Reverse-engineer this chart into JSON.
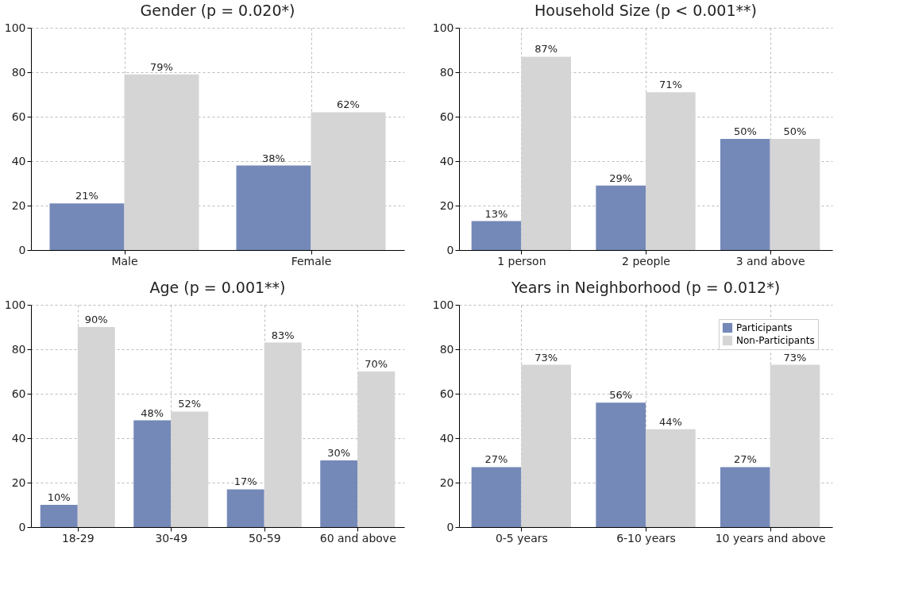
{
  "chart_data": [
    {
      "type": "bar",
      "title": "Gender (p = 0.020*)",
      "categories": [
        "Male",
        "Female"
      ],
      "ylim": [
        0,
        100
      ],
      "yticks": [
        0,
        20,
        40,
        60,
        80,
        100
      ],
      "grid": true,
      "legend": false,
      "series": [
        {
          "color": "#7589b8",
          "values": [
            21,
            38
          ],
          "value_labels": [
            "21%",
            "38%"
          ]
        },
        {
          "color": "#d5d5d5",
          "values": [
            79,
            62
          ],
          "value_labels": [
            "79%",
            "62%"
          ]
        }
      ]
    },
    {
      "type": "bar",
      "title": "Household Size (p < 0.001**)",
      "categories": [
        "1 person",
        "2 people",
        "3 and above"
      ],
      "ylim": [
        0,
        100
      ],
      "yticks": [
        0,
        20,
        40,
        60,
        80,
        100
      ],
      "grid": true,
      "legend": false,
      "series": [
        {
          "color": "#7589b8",
          "values": [
            13,
            29,
            50
          ],
          "value_labels": [
            "13%",
            "29%",
            "50%"
          ]
        },
        {
          "color": "#d5d5d5",
          "values": [
            87,
            71,
            50
          ],
          "value_labels": [
            "87%",
            "71%",
            "50%"
          ]
        }
      ]
    },
    {
      "type": "bar",
      "title": "Age (p = 0.001**)",
      "categories": [
        "18-29",
        "30-49",
        "50-59",
        "60 and above"
      ],
      "ylim": [
        0,
        100
      ],
      "yticks": [
        0,
        20,
        40,
        60,
        80,
        100
      ],
      "grid": true,
      "legend": false,
      "series": [
        {
          "color": "#7589b8",
          "values": [
            10,
            48,
            17,
            30
          ],
          "value_labels": [
            "10%",
            "48%",
            "17%",
            "30%"
          ]
        },
        {
          "color": "#d5d5d5",
          "values": [
            90,
            52,
            83,
            70
          ],
          "value_labels": [
            "90%",
            "52%",
            "83%",
            "70%"
          ]
        }
      ]
    },
    {
      "type": "bar",
      "title": "Years in Neighborhood (p = 0.012*)",
      "categories": [
        "0-5 years",
        "6-10 years",
        "10 years and above"
      ],
      "ylim": [
        0,
        100
      ],
      "yticks": [
        0,
        20,
        40,
        60,
        80,
        100
      ],
      "grid": true,
      "legend": "top right",
      "series": [
        {
          "name": "Participants",
          "color": "#7589b8",
          "values": [
            27,
            56,
            27
          ],
          "value_labels": [
            "27%",
            "56%",
            "27%"
          ]
        },
        {
          "name": "Non-Participants",
          "color": "#d5d5d5",
          "values": [
            73,
            44,
            73
          ],
          "value_labels": [
            "73%",
            "44%",
            "73%"
          ]
        }
      ]
    }
  ]
}
